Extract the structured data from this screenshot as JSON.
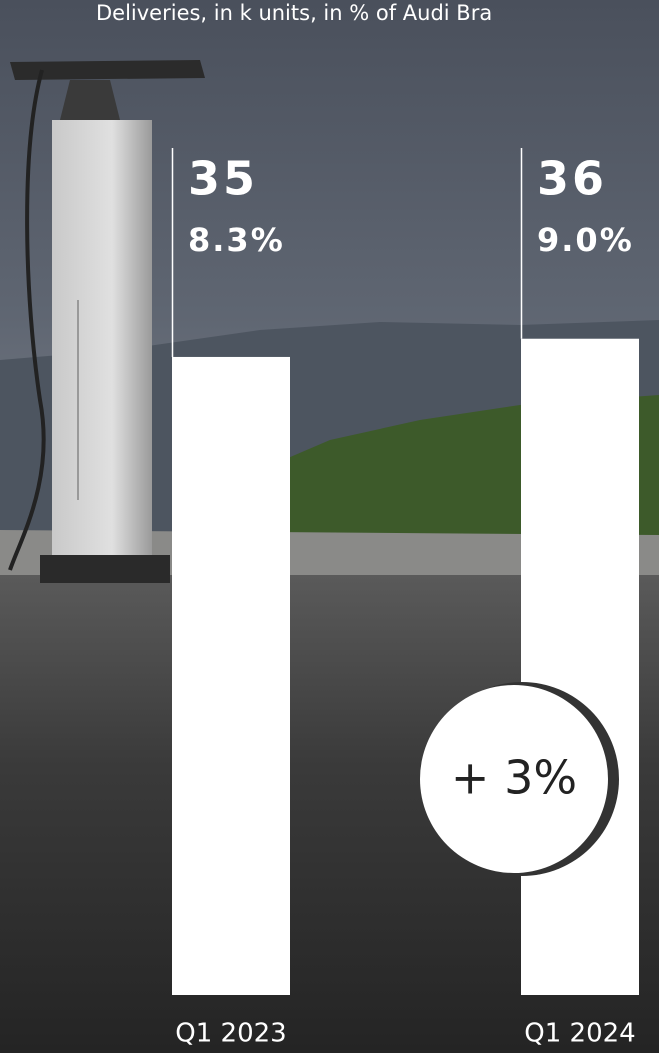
{
  "chart_data": {
    "type": "bar",
    "title": "Deliveries, in k units, in % of Audi Bra",
    "categories": [
      "Q1 2023",
      "Q1 2024"
    ],
    "values": [
      35,
      36
    ],
    "color": "#ffffff",
    "shares": {
      "values": [
        8.3,
        9.0
      ],
      "value_labels": [
        "8.3%",
        "9.0%"
      ]
    },
    "annotation": "+ 3%",
    "ylim": [
      0,
      50
    ]
  }
}
